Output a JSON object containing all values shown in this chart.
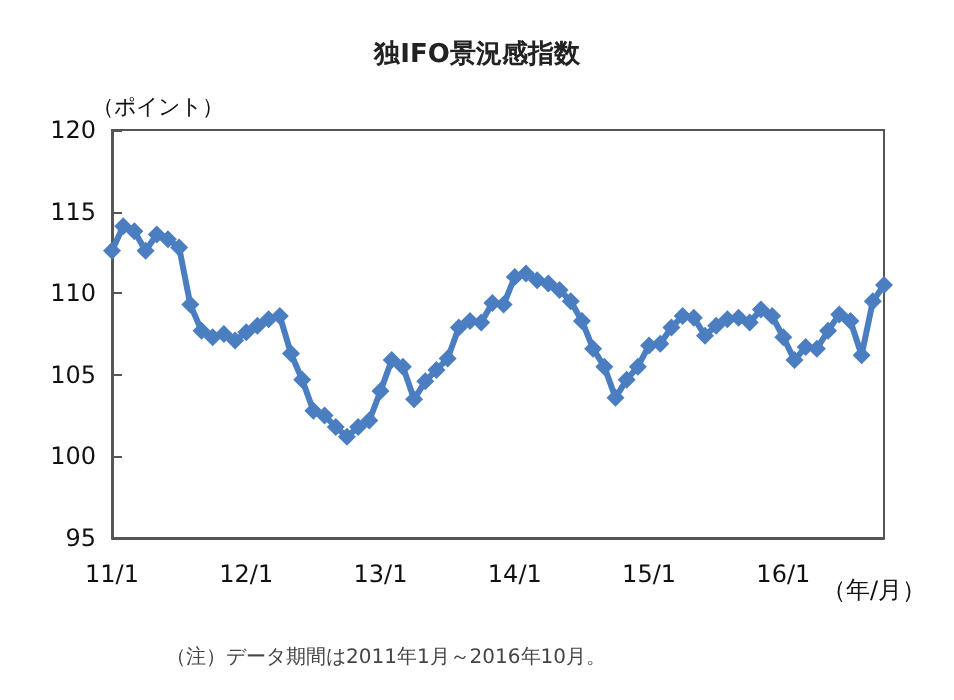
{
  "chart_data": {
    "type": "line",
    "title": "独IFO景況感指数",
    "ylabel": "（ポイント）",
    "xlabel": "（年/月）",
    "annotations": [
      "（注）データ期間は2011年1月～2016年10月。"
    ],
    "categories": [
      "11/1",
      null,
      null,
      null,
      null,
      null,
      null,
      null,
      null,
      null,
      null,
      null,
      "12/1",
      null,
      null,
      null,
      null,
      null,
      null,
      null,
      null,
      null,
      null,
      null,
      "13/1",
      null,
      null,
      null,
      null,
      null,
      null,
      null,
      null,
      null,
      null,
      null,
      "14/1",
      null,
      null,
      null,
      null,
      null,
      null,
      null,
      null,
      null,
      null,
      null,
      "15/1",
      null,
      null,
      null,
      null,
      null,
      null,
      null,
      null,
      null,
      null,
      null,
      "16/1",
      null,
      null,
      null,
      null,
      null,
      null,
      null,
      null,
      null
    ],
    "series": [
      {
        "color": "#4a7ec0",
        "values": [
          112.6,
          114.1,
          113.8,
          112.6,
          113.6,
          113.3,
          112.8,
          109.3,
          107.7,
          107.3,
          107.5,
          107.1,
          107.6,
          108.0,
          108.4,
          108.6,
          106.3,
          104.7,
          102.8,
          102.5,
          101.8,
          101.2,
          101.8,
          102.2,
          104.0,
          105.9,
          105.5,
          103.5,
          104.6,
          105.3,
          106.0,
          107.9,
          108.3,
          108.2,
          109.4,
          109.3,
          111.0,
          111.2,
          110.8,
          110.6,
          110.2,
          109.5,
          108.3,
          106.6,
          105.5,
          103.6,
          104.7,
          105.5,
          106.8,
          106.9,
          107.9,
          108.6,
          108.5,
          107.4,
          108.0,
          108.4,
          108.5,
          108.2,
          109.0,
          108.6,
          107.3,
          105.9,
          106.7,
          106.6,
          107.7,
          108.7,
          108.3,
          106.2,
          109.5,
          110.5
        ]
      }
    ],
    "ylim": [
      95,
      120
    ],
    "yticks": [
      95,
      100,
      105,
      110,
      115,
      120
    ],
    "grid": false,
    "marker": "diamond",
    "line_style": "solid"
  }
}
